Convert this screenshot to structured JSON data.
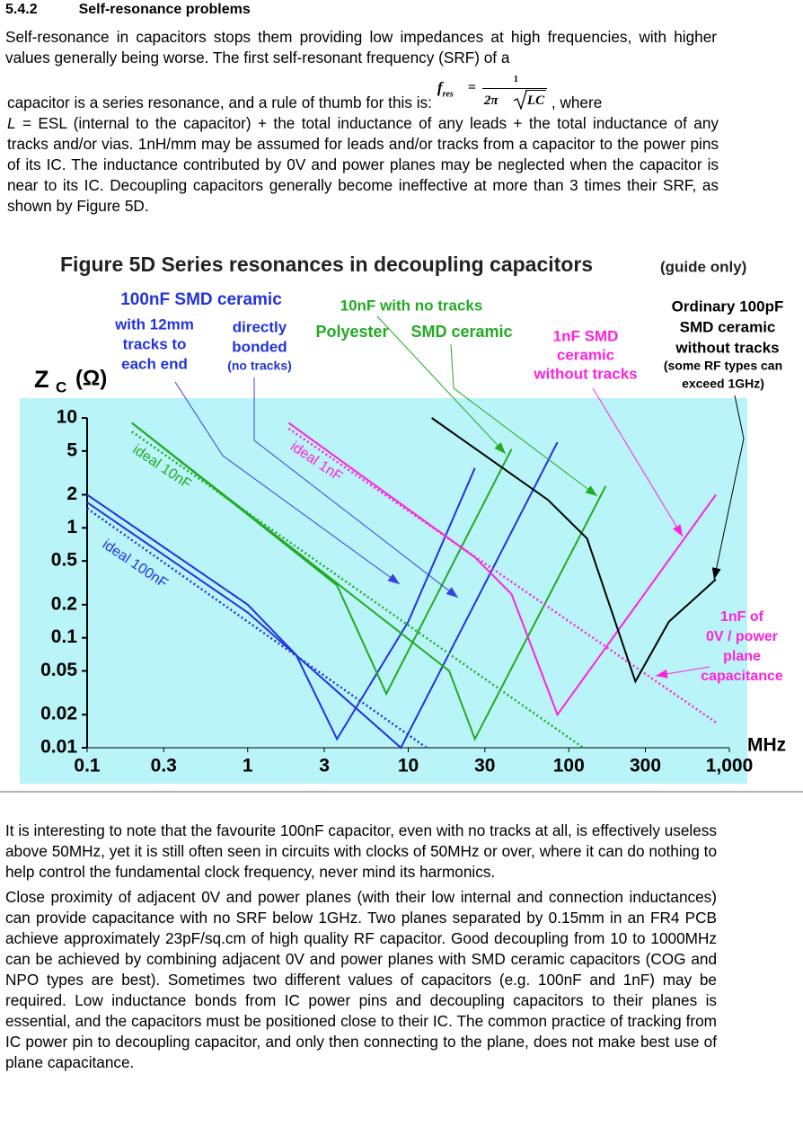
{
  "section": {
    "number": "5.4.2",
    "title": "Self-resonance problems"
  },
  "paragraph_1": "Self-resonance in capacitors stops them providing low impedances at high frequencies, with higher values generally being worse. The first self-resonant frequency (SRF) of a",
  "paragraph_2": {
    "start": "capacitor is a series resonance, and a rule of thumb for this is:",
    "formula": {
      "lhs": "f",
      "lhs_sub": "res",
      "equals": "=",
      "numerator": "1",
      "denominator": "2π",
      "radicand": "LC"
    },
    "after_formula": ", where",
    "symbol": "L",
    "rest": "= ESL (internal to the capacitor) + the total inductance of any leads + the total inductance of any tracks and/or vias. 1nH/mm may be assumed for leads and/or tracks from a capacitor to the power pins of its IC. The inductance contributed by 0V and power planes may be neglected when the capacitor is near to its IC. Decoupling capacitors generally become ineffective at more than 3 times their SRF, as shown by Figure 5D."
  },
  "chart_data": {
    "type": "line",
    "title": "Figure 5D  Series resonances in decoupling capacitors",
    "subtitle": "(guide only)",
    "y_label": {
      "main": "Z",
      "sub": "C",
      "unit": "(Ω)"
    },
    "x_label": "MHz",
    "log_x": true,
    "log_y": true,
    "xlim": [
      0.1,
      1000
    ],
    "ylim": [
      0.01,
      10
    ],
    "xticks": [
      0.1,
      0.3,
      1,
      3,
      10,
      30,
      100,
      300,
      {
        "value": 1000,
        "label": "1,000"
      }
    ],
    "yticks": [
      10,
      5,
      2,
      1,
      0.5,
      0.2,
      0.1,
      0.05,
      0.02,
      0.01
    ],
    "series": [
      {
        "color": "#2233dd",
        "dash": false,
        "x": [
          0.1,
          1,
          2,
          3.6,
          10,
          26
        ],
        "values": [
          2,
          0.2,
          0.07,
          0.012,
          0.14,
          3.5
        ]
      },
      {
        "color": "#2233dd",
        "dash": false,
        "x": [
          0.1,
          1,
          9,
          85
        ],
        "values": [
          1.7,
          0.17,
          0.01,
          6
        ]
      },
      {
        "name": "ideal 100nF",
        "color": "#2233dd",
        "dash": true,
        "x": [
          0.1,
          13
        ],
        "values": [
          1.5,
          0.01
        ]
      },
      {
        "color": "#22aa22",
        "dash": false,
        "x": [
          0.19,
          18,
          26,
          170
        ],
        "values": [
          9,
          0.05,
          0.012,
          2.4
        ]
      },
      {
        "color": "#22aa22",
        "dash": false,
        "x": [
          0.19,
          3.6,
          7.3,
          44
        ],
        "values": [
          9,
          0.3,
          0.031,
          5.2
        ]
      },
      {
        "name": "ideal 10nF",
        "color": "#22aa22",
        "dash": true,
        "x": [
          0.19,
          123
        ],
        "values": [
          7.5,
          0.01
        ]
      },
      {
        "color": "#ff22dd",
        "dash": false,
        "x": [
          1.8,
          26,
          44,
          85,
          824
        ],
        "values": [
          9,
          0.54,
          0.25,
          0.02,
          2
        ]
      },
      {
        "name": "ideal 1nF",
        "color": "#ff22dd",
        "dash": true,
        "x": [
          1.8,
          824
        ],
        "values": [
          8,
          0.017
        ]
      },
      {
        "color": "#000000",
        "dash": false,
        "x": [
          14,
          74,
          130,
          260,
          420,
          824
        ],
        "values": [
          10,
          1.8,
          0.8,
          0.04,
          0.14,
          0.34
        ]
      }
    ],
    "annotations": [
      {
        "lines": [
          "100nF SMD ceramic"
        ],
        "color": "#2233dd"
      },
      {
        "lines": [
          "with 12mm",
          "tracks to",
          "each end"
        ],
        "color": "#2233dd"
      },
      {
        "lines": [
          "directly",
          "bonded"
        ],
        "color": "#2233dd"
      },
      {
        "lines": [
          "(no tracks)"
        ],
        "color": "#2233dd"
      },
      {
        "lines": [
          "10nF with no tracks"
        ],
        "color": "#22aa22"
      },
      {
        "lines": [
          "Polyester"
        ],
        "color": "#22aa22"
      },
      {
        "lines": [
          "SMD ceramic"
        ],
        "color": "#22aa22"
      },
      {
        "lines": [
          "1nF SMD",
          "ceramic",
          "without tracks"
        ],
        "color": "#ff22dd"
      },
      {
        "lines": [
          "Ordinary 100pF",
          "SMD ceramic",
          "without tracks"
        ],
        "color": "#000000"
      },
      {
        "lines": [
          "(some RF types can",
          "exceed 1GHz)"
        ],
        "color": "#000000"
      },
      {
        "lines": [
          "1nF of",
          "0V / power",
          "plane",
          "capacitance"
        ],
        "color": "#ff22dd"
      }
    ]
  },
  "paragraph_3": "It is interesting to note that the favourite 100nF capacitor, even with no tracks at all, is effectively useless above 50MHz, yet it is still often seen in circuits with clocks of 50MHz or over, where it can do nothing to help control the fundamental clock frequency, never mind its harmonics.",
  "paragraph_4": "Close proximity of adjacent 0V and power planes (with their low internal and connection inductances) can provide capacitance with no SRF below 1GHz. Two planes separated by 0.15mm in an FR4 PCB achieve approximately 23pF/sq.cm of high quality RF capacitor. Good decoupling from 10 to 1000MHz can be achieved by combining adjacent 0V and power planes with SMD ceramic capacitors (COG and NPO types are best). Sometimes two different values of capacitors (e.g. 100nF and 1nF) may be required. Low inductance bonds from IC power pins and decoupling capacitors to their planes is essential, and the capacitors must be positioned close to their IC. The common practice of tracking from IC power pin to decoupling capacitor, and only then connecting to the plane, does not make best use of plane capacitance."
}
